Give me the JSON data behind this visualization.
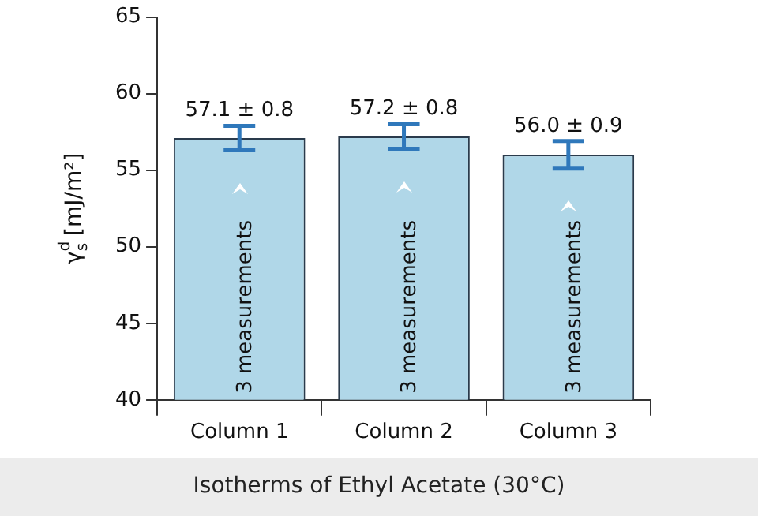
{
  "chart_data": {
    "type": "bar",
    "title": "Isotherms of Ethyl Acetate (30°C)",
    "ylabel": "γ$_{s}$$^{d}$ [mJ/m²]",
    "categories": [
      "Column 1",
      "Column 2",
      "Column 3"
    ],
    "values": [
      57.1,
      57.2,
      56.0
    ],
    "errors": [
      0.8,
      0.8,
      0.9
    ],
    "value_labels": [
      "57.1 ± 0.8",
      "57.2 ± 0.8",
      "56.0 ± 0.9"
    ],
    "color": "#b0d7e8",
    "ylim": [
      40,
      65
    ],
    "yticks": [
      40,
      45,
      50,
      55,
      60,
      65
    ],
    "annotations": [
      "3 measurements",
      "3 measurements",
      "3 measurements"
    ],
    "grid": false,
    "legend": false
  }
}
